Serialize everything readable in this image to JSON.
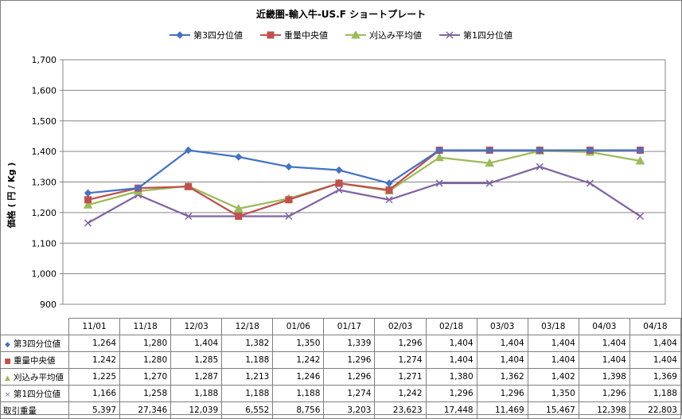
{
  "chart_data": {
    "type": "line",
    "title": "近畿圏-輸入牛-US.F ショートプレート",
    "ylabel": "価格 ( 円 / Kg )",
    "ylim": [
      900,
      1700
    ],
    "yticks": [
      "900",
      "1,000",
      "1,100",
      "1,200",
      "1,300",
      "1,400",
      "1,500",
      "1,600",
      "1,700"
    ],
    "grid": true,
    "legend_position": "top",
    "categories": [
      "11/01",
      "11/18",
      "12/03",
      "12/18",
      "01/06",
      "01/17",
      "02/03",
      "02/18",
      "03/03",
      "03/18",
      "04/03",
      "04/18"
    ],
    "series": [
      {
        "name": "第3四分位値",
        "color": "#4472c4",
        "marker": "diamond",
        "values": [
          1264,
          1280,
          1404,
          1382,
          1350,
          1339,
          1296,
          1404,
          1404,
          1404,
          1404,
          1404
        ]
      },
      {
        "name": "重量中央値",
        "color": "#c0504d",
        "marker": "square",
        "values": [
          1242,
          1280,
          1285,
          1188,
          1242,
          1296,
          1274,
          1404,
          1404,
          1404,
          1404,
          1404
        ]
      },
      {
        "name": "刈込み平均値",
        "color": "#9bbb59",
        "marker": "triangle",
        "values": [
          1225,
          1270,
          1287,
          1213,
          1246,
          1296,
          1271,
          1380,
          1362,
          1402,
          1398,
          1369
        ]
      },
      {
        "name": "第1四分位値",
        "color": "#8064a2",
        "marker": "x",
        "values": [
          1166,
          1258,
          1188,
          1188,
          1188,
          1274,
          1242,
          1296,
          1296,
          1350,
          1296,
          1188
        ]
      }
    ],
    "table": {
      "extra_row_label": "取引重量",
      "extra_row_values": [
        5397,
        27346,
        12039,
        6552,
        8756,
        3203,
        23623,
        17448,
        11469,
        15467,
        12398,
        22803
      ]
    }
  }
}
